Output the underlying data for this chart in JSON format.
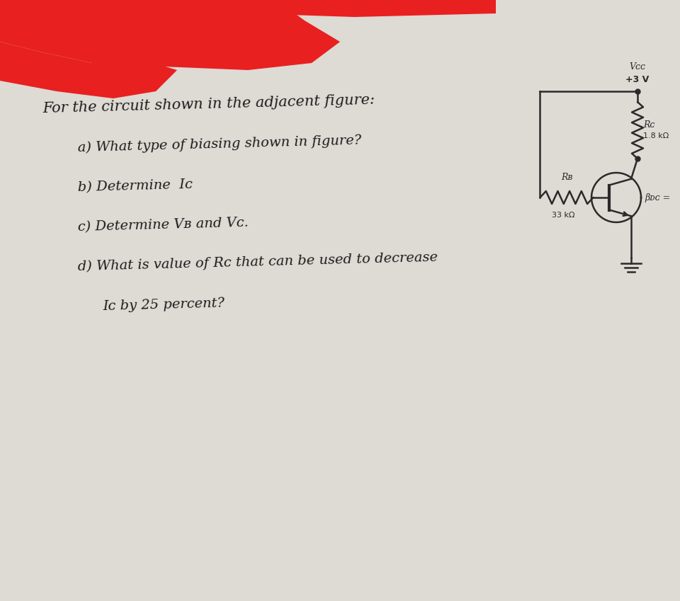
{
  "bg_color": "#c8c5bf",
  "paper_color": "#e8e5e0",
  "red_color": "#e82020",
  "text_color": "#1a1a1a",
  "circuit_color": "#2a2a2a",
  "question_title": "For the circuit shown in the adjacent figure:",
  "q_a": "a) What type of biasing shown in figure?",
  "q_b": "b) Determine  Iᴄ",
  "q_c": "c) Determine Vʙ and Vᴄ.",
  "q_d1": "d) What is value of Rᴄ that can be used to decrease",
  "q_d2": "     Iᴄ by 25 percent?",
  "vcc_label": "Vᴄᴄ",
  "vcc_value": "+3 V",
  "rc_label": "Rᴄ",
  "rc_value": "1.8 kΩ",
  "rb_label": "Rʙ",
  "rb_value": "33 kΩ",
  "beta_label": "βᴅᴄ =",
  "title_fs": 15,
  "body_fs": 14
}
